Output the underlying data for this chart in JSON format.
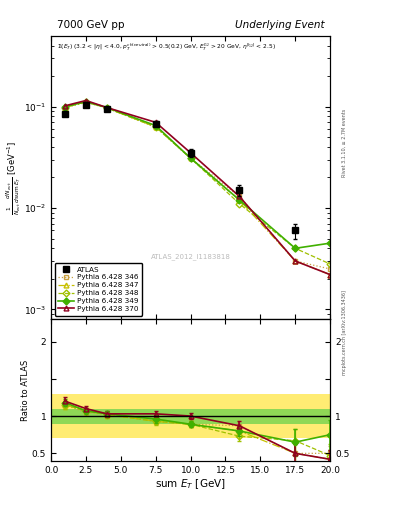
{
  "title_left": "7000 GeV pp",
  "title_right": "Underlying Event",
  "ylabel_main": "$\\frac{1}{N_{evt}} \\frac{d\\,N_{evt}}{d\\,\\mathrm{sum}\\,E_T}$ [GeV$^{-1}$]",
  "ylabel_ratio": "Ratio to ATLAS",
  "xlabel": "sum $E_T$ [GeV]",
  "watermark": "ATLAS_2012_I1183818",
  "rivet_label": "Rivet 3.1.10, ≥ 2.7M events",
  "mcplots_label": "mcplots.cern.ch [arXiv:1306.3436]",
  "x_data": [
    1.0,
    2.5,
    4.0,
    7.5,
    10.0,
    13.5,
    17.5,
    20.0
  ],
  "x_edges": [
    0.0,
    2.0,
    3.5,
    5.5,
    9.0,
    11.5,
    15.5,
    19.5,
    21.0
  ],
  "atlas_y": [
    0.085,
    0.105,
    0.095,
    0.068,
    0.035,
    0.015,
    0.006,
    null
  ],
  "atlas_yerr": [
    0.005,
    0.005,
    0.005,
    0.004,
    0.003,
    0.002,
    0.001,
    null
  ],
  "p346_y": [
    0.098,
    0.11,
    0.097,
    0.063,
    0.031,
    0.013,
    0.003,
    0.0025
  ],
  "p347_y": [
    0.098,
    0.112,
    0.097,
    0.063,
    0.031,
    0.012,
    0.003,
    0.0022
  ],
  "p348_y": [
    0.098,
    0.112,
    0.097,
    0.063,
    0.031,
    0.011,
    0.004,
    0.0028
  ],
  "p349_y": [
    0.1,
    0.112,
    0.098,
    0.065,
    0.031,
    0.012,
    0.004,
    0.0045
  ],
  "p370_y": [
    0.102,
    0.115,
    0.098,
    0.07,
    0.035,
    0.013,
    0.003,
    0.0022
  ],
  "ratio_346": [
    1.15,
    1.05,
    1.02,
    0.93,
    0.89,
    0.87,
    0.5,
    0.5
  ],
  "ratio_347": [
    1.15,
    1.07,
    1.02,
    0.93,
    0.89,
    0.8,
    0.5,
    0.42
  ],
  "ratio_348": [
    1.15,
    1.07,
    1.02,
    0.93,
    0.89,
    0.73,
    0.67,
    0.47
  ],
  "ratio_349": [
    1.18,
    1.07,
    1.03,
    0.96,
    0.89,
    0.8,
    0.65,
    0.75
  ],
  "ratio_370": [
    1.2,
    1.1,
    1.03,
    1.03,
    1.0,
    0.87,
    0.5,
    0.42
  ],
  "ratio_346_err": [
    0.05,
    0.04,
    0.04,
    0.04,
    0.04,
    0.07,
    0.12,
    0.1
  ],
  "ratio_347_err": [
    0.05,
    0.04,
    0.04,
    0.04,
    0.04,
    0.07,
    0.12,
    0.12
  ],
  "ratio_348_err": [
    0.05,
    0.04,
    0.04,
    0.05,
    0.04,
    0.07,
    0.15,
    0.15
  ],
  "ratio_349_err": [
    0.05,
    0.04,
    0.04,
    0.05,
    0.04,
    0.07,
    0.18,
    0.2
  ],
  "ratio_370_err": [
    0.05,
    0.04,
    0.04,
    0.04,
    0.04,
    0.07,
    0.12,
    0.12
  ],
  "band_green_lo": [
    0.9,
    0.9,
    0.9,
    0.9,
    0.9,
    0.9,
    0.9,
    0.9
  ],
  "band_green_hi": [
    1.1,
    1.1,
    1.1,
    1.1,
    1.1,
    1.1,
    1.1,
    1.1
  ],
  "band_yellow_lo": [
    0.7,
    0.7,
    0.7,
    0.7,
    0.7,
    0.7,
    0.7,
    0.7
  ],
  "band_yellow_hi": [
    1.3,
    1.3,
    1.3,
    1.3,
    1.3,
    1.3,
    1.3,
    1.3
  ],
  "color_346": "#c8a040",
  "color_347": "#c8c000",
  "color_348": "#a0c000",
  "color_349": "#40b000",
  "color_370": "#900020",
  "xlim": [
    0,
    20
  ],
  "ylim_main": [
    0.0008,
    0.5
  ],
  "ylim_ratio": [
    0.4,
    2.3
  ]
}
